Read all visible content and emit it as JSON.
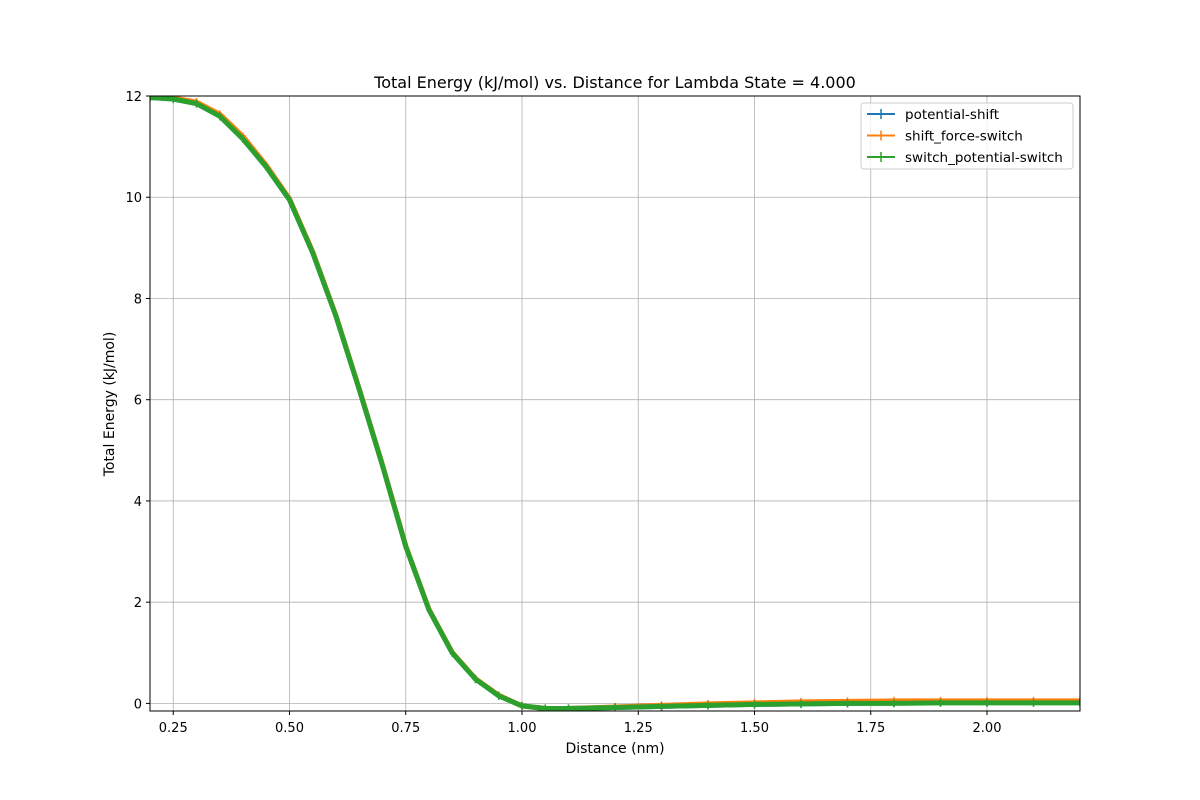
{
  "chart_data": {
    "type": "line",
    "title": "Total Energy (kJ/mol) vs. Distance for Lambda State = 4.000",
    "xlabel": "Distance (nm)",
    "ylabel": "Total Energy (kJ/mol)",
    "xlim": [
      0.2,
      2.2
    ],
    "ylim": [
      -0.15,
      12.0
    ],
    "x_ticks": [
      0.25,
      0.5,
      0.75,
      1.0,
      1.25,
      1.5,
      1.75,
      2.0
    ],
    "x_tick_labels": [
      "0.25",
      "0.50",
      "0.75",
      "1.00",
      "1.25",
      "1.50",
      "1.75",
      "2.00"
    ],
    "y_ticks": [
      0,
      2,
      4,
      6,
      8,
      10,
      12
    ],
    "y_tick_labels": [
      "0",
      "2",
      "4",
      "6",
      "8",
      "10",
      "12"
    ],
    "grid": true,
    "legend_position": "top-right",
    "x": [
      0.2,
      0.25,
      0.3,
      0.35,
      0.4,
      0.45,
      0.5,
      0.55,
      0.6,
      0.65,
      0.7,
      0.75,
      0.8,
      0.85,
      0.9,
      0.95,
      1.0,
      1.05,
      1.1,
      1.2,
      1.3,
      1.4,
      1.5,
      1.6,
      1.7,
      1.8,
      1.9,
      2.0,
      2.1,
      2.2
    ],
    "series": [
      {
        "name": "potential-shift",
        "color": "#1f77b4",
        "values": [
          11.97,
          11.94,
          11.85,
          11.6,
          11.15,
          10.6,
          9.95,
          8.9,
          7.65,
          6.2,
          4.7,
          3.1,
          1.85,
          1.0,
          0.48,
          0.15,
          -0.05,
          -0.1,
          -0.1,
          -0.08,
          -0.06,
          -0.04,
          -0.02,
          -0.01,
          0.0,
          0.01,
          0.02,
          0.02,
          0.02,
          0.02
        ]
      },
      {
        "name": "shift_force-switch",
        "color": "#ff7f0e",
        "values": [
          11.98,
          11.96,
          11.88,
          11.64,
          11.2,
          10.63,
          9.97,
          8.92,
          7.66,
          6.21,
          4.71,
          3.11,
          1.86,
          1.01,
          0.49,
          0.16,
          -0.05,
          -0.1,
          -0.1,
          -0.07,
          -0.04,
          -0.01,
          0.01,
          0.03,
          0.04,
          0.05,
          0.05,
          0.05,
          0.05,
          0.05
        ]
      },
      {
        "name": "switch_potential-switch",
        "color": "#2ca02c",
        "values": [
          11.97,
          11.94,
          11.85,
          11.6,
          11.15,
          10.6,
          9.95,
          8.9,
          7.65,
          6.2,
          4.7,
          3.1,
          1.85,
          1.0,
          0.48,
          0.15,
          -0.05,
          -0.1,
          -0.1,
          -0.08,
          -0.06,
          -0.04,
          -0.02,
          -0.01,
          0.0,
          0.0,
          0.01,
          0.01,
          0.01,
          0.01
        ]
      }
    ]
  }
}
